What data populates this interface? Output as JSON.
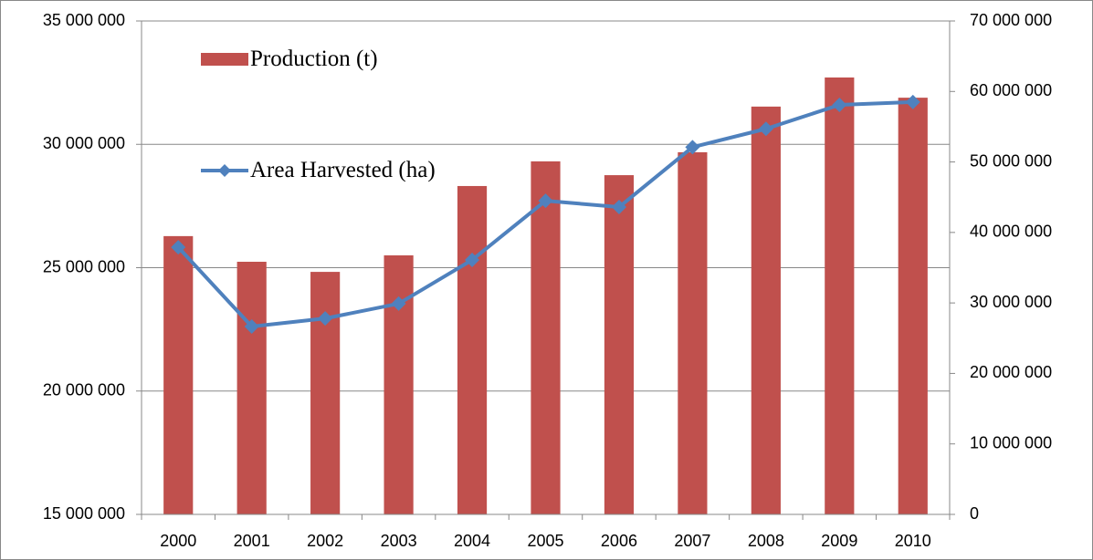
{
  "chart_data": {
    "type": "bar_line",
    "categories": [
      "2000",
      "2001",
      "2002",
      "2003",
      "2004",
      "2005",
      "2006",
      "2007",
      "2008",
      "2009",
      "2010"
    ],
    "series": [
      {
        "name": "Production (t)",
        "color": "#c0504d",
        "type": "bar",
        "axis": "y",
        "values": [
          26280000,
          25240000,
          24830000,
          25500000,
          28310000,
          29310000,
          28750000,
          29680000,
          31530000,
          32710000,
          31890000
        ]
      },
      {
        "name": "Area Harvested (ha)",
        "color": "#4f81bd",
        "type": "line",
        "axis": "y2",
        "values": [
          37900000,
          26650000,
          27800000,
          29900000,
          36100000,
          44500000,
          43600000,
          52100000,
          54700000,
          58100000,
          58500000
        ]
      }
    ],
    "ylim": [
      15000000,
      35000000
    ],
    "yticks": [
      {
        "value": 15000000,
        "label": "15 000 000"
      },
      {
        "value": 20000000,
        "label": "20 000 000"
      },
      {
        "value": 25000000,
        "label": "25 000 000"
      },
      {
        "value": 30000000,
        "label": "30 000 000"
      },
      {
        "value": 35000000,
        "label": "35 000 000"
      }
    ],
    "y2lim": [
      0,
      70000000
    ],
    "y2ticks": [
      0,
      {
        "value": 10000000,
        "label": "10 000 000"
      },
      {
        "value": 20000000,
        "label": "20 000 000"
      },
      {
        "value": 30000000,
        "label": "30 000 000"
      },
      {
        "value": 40000000,
        "label": "40 000 000"
      },
      {
        "value": 50000000,
        "label": "50 000 000"
      },
      {
        "value": 60000000,
        "label": "60 000 000"
      },
      {
        "value": 70000000,
        "label": "70 000 000"
      }
    ],
    "grid": true,
    "legend": "upper left"
  }
}
